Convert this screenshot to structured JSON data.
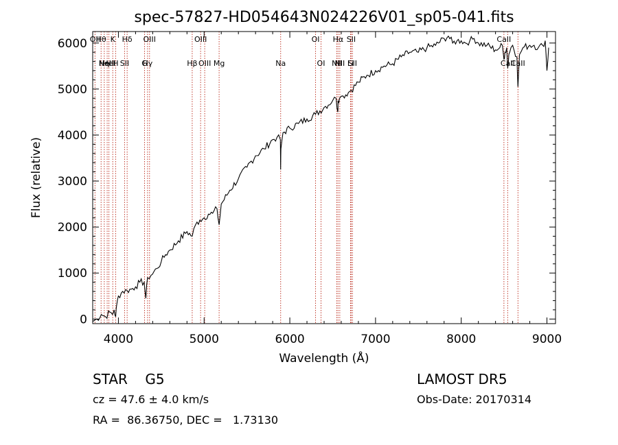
{
  "chart_data": {
    "type": "line",
    "title": "spec-57827-HD054643N024226V01_sp05-041.fits",
    "xlabel": "Wavelength (Å)",
    "ylabel": "Flux (relative)",
    "xlim": [
      3700,
      9100
    ],
    "ylim": [
      -100,
      6250
    ],
    "x_ticks": [
      4000,
      5000,
      6000,
      7000,
      8000,
      9000
    ],
    "y_ticks": [
      0,
      1000,
      2000,
      3000,
      4000,
      5000,
      6000
    ],
    "grid": false,
    "series": [
      {
        "x": [
          3700,
          3750,
          3800,
          3850,
          3900,
          3930,
          3950,
          3968,
          3980,
          4000,
          4050,
          4101,
          4150,
          4200,
          4250,
          4300,
          4320,
          4340,
          4380,
          4450,
          4500,
          4550,
          4600,
          4700,
          4800,
          4861,
          4900,
          4950,
          5000,
          5050,
          5100,
          5150,
          5175,
          5200,
          5300,
          5400,
          5500,
          5600,
          5700,
          5800,
          5850,
          5890,
          5893,
          5896,
          5920,
          6000,
          6100,
          6200,
          6300,
          6400,
          6500,
          6540,
          6560,
          6563,
          6580,
          6620,
          6700,
          6800,
          6900,
          7000,
          7100,
          7200,
          7300,
          7400,
          7500,
          7600,
          7700,
          7800,
          7850,
          7900,
          7950,
          8000,
          8050,
          8100,
          8150,
          8200,
          8300,
          8400,
          8450,
          8480,
          8498,
          8510,
          8530,
          8542,
          8555,
          8580,
          8600,
          8650,
          8662,
          8680,
          8720,
          8800,
          8850,
          8900,
          8950,
          8980,
          9000,
          9020
        ],
        "y": [
          -50,
          0,
          100,
          50,
          150,
          100,
          200,
          50,
          300,
          500,
          600,
          620,
          650,
          700,
          800,
          800,
          450,
          900,
          950,
          1100,
          1250,
          1400,
          1500,
          1700,
          1900,
          1800,
          2050,
          2150,
          2200,
          2280,
          2300,
          2400,
          2050,
          2500,
          2800,
          3050,
          3300,
          3550,
          3700,
          3900,
          3950,
          3900,
          3250,
          3700,
          4050,
          4150,
          4250,
          4350,
          4450,
          4600,
          4750,
          4800,
          4500,
          4750,
          4800,
          4850,
          4950,
          5150,
          5300,
          5400,
          5500,
          5550,
          5700,
          5800,
          5800,
          5900,
          5950,
          6100,
          6150,
          6000,
          6050,
          6050,
          6000,
          6050,
          6100,
          6000,
          5950,
          5850,
          5900,
          5950,
          5650,
          5800,
          5900,
          5450,
          5750,
          5900,
          5950,
          5700,
          5050,
          5750,
          5900,
          5950,
          5950,
          5900,
          5950,
          6050,
          5400,
          5900
        ]
      }
    ],
    "lines": [
      {
        "x": 3727,
        "top": "OII",
        "lower": ""
      },
      {
        "x": 3798,
        "top": "Hθ",
        "lower": ""
      },
      {
        "x": 3835,
        "top": "",
        "lower": "Hη"
      },
      {
        "x": 3869,
        "top": "",
        "lower": "NeIII"
      },
      {
        "x": 3889,
        "top": "",
        "lower": "HeI"
      },
      {
        "x": 3934,
        "top": "K",
        "lower": ""
      },
      {
        "x": 3968,
        "top": "",
        "lower": "H"
      },
      {
        "x": 4072,
        "top": "",
        "lower": "SII"
      },
      {
        "x": 4102,
        "top": "Hδ",
        "lower": ""
      },
      {
        "x": 4340,
        "top": "",
        "lower": "Hγ"
      },
      {
        "x": 4363,
        "top": "OIII",
        "lower": ""
      },
      {
        "x": 4305,
        "top": "",
        "lower": "G"
      },
      {
        "x": 4861,
        "top": "",
        "lower": "Hβ"
      },
      {
        "x": 4959,
        "top": "OIII",
        "lower": ""
      },
      {
        "x": 5007,
        "top": "",
        "lower": "OIII"
      },
      {
        "x": 5175,
        "top": "",
        "lower": "Mg"
      },
      {
        "x": 5893,
        "top": "",
        "lower": "Na"
      },
      {
        "x": 6300,
        "top": "OI",
        "lower": ""
      },
      {
        "x": 6364,
        "top": "",
        "lower": "OI"
      },
      {
        "x": 6548,
        "top": "",
        "lower": "NII"
      },
      {
        "x": 6563,
        "top": "Hα",
        "lower": ""
      },
      {
        "x": 6583,
        "top": "",
        "lower": "NII"
      },
      {
        "x": 6708,
        "top": "",
        "lower": "Li"
      },
      {
        "x": 6716,
        "top": "SII",
        "lower": ""
      },
      {
        "x": 6731,
        "top": "",
        "lower": "SII"
      },
      {
        "x": 8498,
        "top": "CaII",
        "lower": ""
      },
      {
        "x": 8542,
        "top": "",
        "lower": "CaII"
      },
      {
        "x": 8662,
        "top": "",
        "lower": "CaII"
      }
    ]
  },
  "info": {
    "class_text": "STAR    G5",
    "survey": "LAMOST DR5",
    "cz": "cz = 47.6 ± 4.0 km/s",
    "obs_date": "Obs-Date: 20170314",
    "coords": "RA =  86.36750, DEC =   1.73130"
  }
}
